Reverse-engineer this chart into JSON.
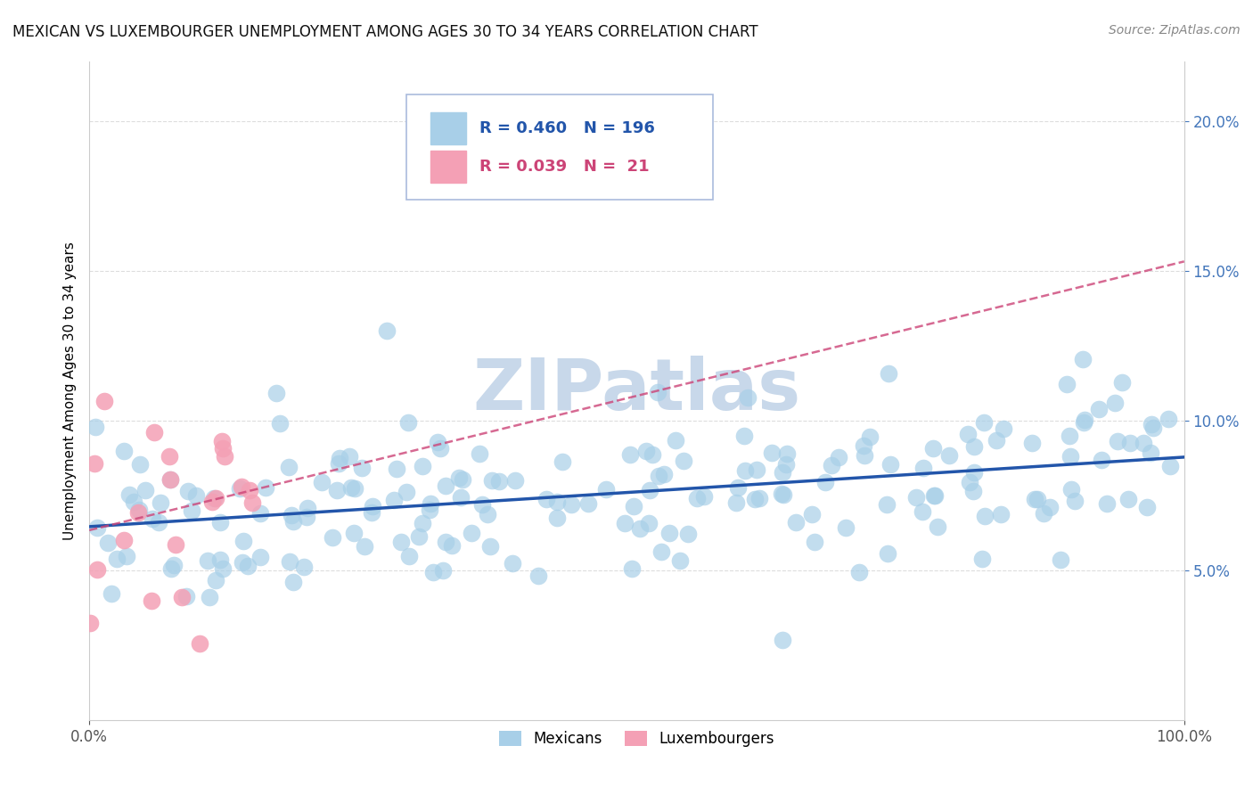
{
  "title": "MEXICAN VS LUXEMBOURGER UNEMPLOYMENT AMONG AGES 30 TO 34 YEARS CORRELATION CHART",
  "source": "Source: ZipAtlas.com",
  "ylabel": "Unemployment Among Ages 30 to 34 years",
  "xlim": [
    0,
    1.0
  ],
  "ylim": [
    0.0,
    0.22
  ],
  "xtick_positions": [
    0.0,
    1.0
  ],
  "xticklabels": [
    "0.0%",
    "100.0%"
  ],
  "ytick_positions": [
    0.05,
    0.1,
    0.15,
    0.2
  ],
  "yticklabels": [
    "5.0%",
    "10.0%",
    "15.0%",
    "20.0%"
  ],
  "mexican_color": "#a8cfe8",
  "luxembourger_color": "#f4a0b5",
  "mexican_line_color": "#2255aa",
  "luxembourger_line_color": "#cc4477",
  "mexican_R": 0.46,
  "mexican_N": 196,
  "luxembourger_R": 0.039,
  "luxembourger_N": 21,
  "watermark": "ZIPatlas",
  "watermark_color": "#c8d8ea",
  "background_color": "#ffffff",
  "grid_color": "#dddddd",
  "legend_border_color": "#aabbdd"
}
